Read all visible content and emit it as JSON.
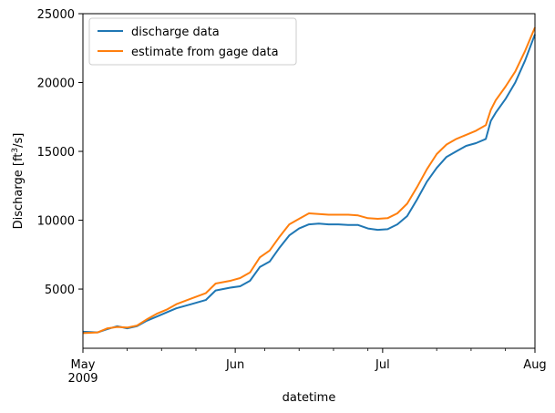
{
  "chart_data": {
    "type": "line",
    "title": "",
    "xlabel": "datetime",
    "ylabel": "Discharge [ft³/s]",
    "x_unit": "date",
    "xlim": [
      "2009-05-01",
      "2009-08-01"
    ],
    "ylim": [
      700,
      25000
    ],
    "x_ticks": [
      {
        "date": "2009-05-01",
        "label": "May",
        "sublabel": "2009"
      },
      {
        "date": "2009-06-01",
        "label": "Jun",
        "sublabel": ""
      },
      {
        "date": "2009-07-01",
        "label": "Jul",
        "sublabel": ""
      },
      {
        "date": "2009-08-01",
        "label": "Aug",
        "sublabel": ""
      }
    ],
    "x_minor_ticks": [
      "2009-05-10",
      "2009-05-17",
      "2009-05-24",
      "2009-06-07",
      "2009-06-14",
      "2009-06-21",
      "2009-06-28",
      "2009-07-12",
      "2009-07-19",
      "2009-07-26"
    ],
    "y_ticks": [
      5000,
      10000,
      15000,
      20000,
      25000
    ],
    "grid": false,
    "legend_position": "top-left",
    "series": [
      {
        "name": "discharge data",
        "color": "#1f77b4",
        "x": [
          "2009-05-01",
          "2009-05-04",
          "2009-05-06",
          "2009-05-08",
          "2009-05-10",
          "2009-05-12",
          "2009-05-14",
          "2009-05-16",
          "2009-05-18",
          "2009-05-20",
          "2009-05-23",
          "2009-05-26",
          "2009-05-28",
          "2009-05-31",
          "2009-06-02",
          "2009-06-04",
          "2009-06-06",
          "2009-06-08",
          "2009-06-10",
          "2009-06-12",
          "2009-06-14",
          "2009-06-16",
          "2009-06-18",
          "2009-06-20",
          "2009-06-22",
          "2009-06-24",
          "2009-06-26",
          "2009-06-28",
          "2009-06-30",
          "2009-07-02",
          "2009-07-04",
          "2009-07-06",
          "2009-07-08",
          "2009-07-10",
          "2009-07-12",
          "2009-07-14",
          "2009-07-16",
          "2009-07-18",
          "2009-07-20",
          "2009-07-22",
          "2009-07-23",
          "2009-07-24",
          "2009-07-26",
          "2009-07-28",
          "2009-07-30",
          "2009-08-01"
        ],
        "y": [
          1900,
          1850,
          2100,
          2300,
          2150,
          2300,
          2700,
          3000,
          3300,
          3600,
          3900,
          4200,
          4900,
          5100,
          5200,
          5600,
          6600,
          7000,
          8000,
          8900,
          9400,
          9700,
          9750,
          9700,
          9700,
          9650,
          9650,
          9400,
          9300,
          9350,
          9700,
          10300,
          11500,
          12800,
          13800,
          14600,
          15000,
          15400,
          15600,
          15900,
          17200,
          17800,
          18800,
          20000,
          21600,
          23500
        ]
      },
      {
        "name": "estimate from gage data",
        "color": "#ff7f0e",
        "x": [
          "2009-05-01",
          "2009-05-04",
          "2009-05-06",
          "2009-05-08",
          "2009-05-10",
          "2009-05-12",
          "2009-05-14",
          "2009-05-16",
          "2009-05-18",
          "2009-05-20",
          "2009-05-23",
          "2009-05-26",
          "2009-05-28",
          "2009-05-31",
          "2009-06-02",
          "2009-06-04",
          "2009-06-06",
          "2009-06-08",
          "2009-06-10",
          "2009-06-12",
          "2009-06-14",
          "2009-06-16",
          "2009-06-18",
          "2009-06-20",
          "2009-06-22",
          "2009-06-24",
          "2009-06-26",
          "2009-06-28",
          "2009-06-30",
          "2009-07-02",
          "2009-07-04",
          "2009-07-06",
          "2009-07-08",
          "2009-07-10",
          "2009-07-12",
          "2009-07-14",
          "2009-07-16",
          "2009-07-18",
          "2009-07-20",
          "2009-07-22",
          "2009-07-23",
          "2009-07-24",
          "2009-07-26",
          "2009-07-28",
          "2009-07-30",
          "2009-08-01"
        ],
        "y": [
          1800,
          1850,
          2150,
          2250,
          2200,
          2350,
          2800,
          3200,
          3500,
          3900,
          4300,
          4700,
          5400,
          5600,
          5800,
          6200,
          7300,
          7800,
          8800,
          9700,
          10100,
          10500,
          10450,
          10400,
          10400,
          10400,
          10350,
          10150,
          10100,
          10150,
          10500,
          11200,
          12400,
          13700,
          14800,
          15500,
          15900,
          16200,
          16500,
          16900,
          18000,
          18700,
          19700,
          20800,
          22300,
          24000
        ]
      }
    ]
  }
}
